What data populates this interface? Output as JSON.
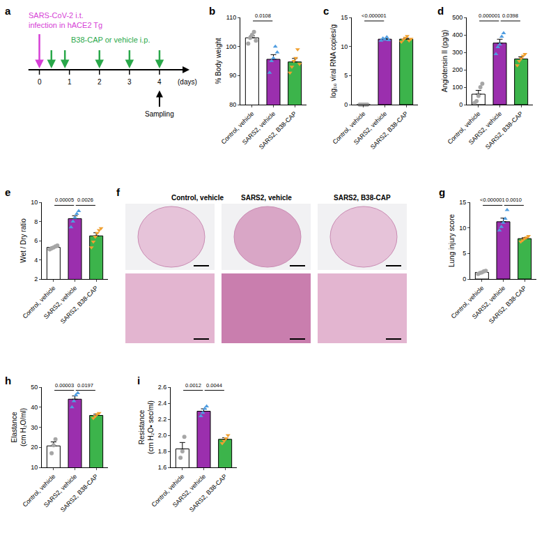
{
  "diagram": {
    "panel": "a",
    "type": "timeline",
    "day_ticks": [
      0,
      1,
      2,
      3,
      4
    ],
    "unit_label": "(days)",
    "infection": {
      "day": 0,
      "label": [
        "SARS-CoV-2 i.t.",
        "infection in hACE2 Tg"
      ],
      "color": "#d63fd6"
    },
    "treatment": {
      "days": [
        0.4,
        0.85,
        2,
        3,
        4
      ],
      "label": "B38-CAP or vehicle i.p.",
      "color": "#2aa84a"
    },
    "sampling": {
      "day": 4,
      "label": "Sampling"
    }
  },
  "images": {
    "panel": "f",
    "type": "image",
    "columns": [
      "Control, vehicle",
      "SARS2, vehicle",
      "SARS2, B38-CAP"
    ]
  },
  "chart_data": [
    {
      "panel": "b",
      "type": "bar",
      "categories": [
        "Control, vehicle",
        "SARS2, vehicle",
        "SARS2, B38-CAP"
      ],
      "y_label": [
        "% Body weight"
      ],
      "ylim": [
        80,
        110
      ],
      "yticks": [
        80,
        90,
        100,
        110
      ],
      "values": [
        103,
        95.6,
        94.7
      ],
      "errors": [
        0.7,
        1.6,
        1.2
      ],
      "colors": [
        "#ffffff",
        "#9b2fae",
        "#3cb44b"
      ],
      "points": [
        [
          101,
          103,
          104,
          105,
          102
        ],
        [
          91,
          95,
          96,
          100,
          98
        ],
        [
          91,
          93,
          95,
          96,
          99,
          94
        ]
      ],
      "point_colors": [
        "#a6a6a6",
        "#4f9de0",
        "#f0a030"
      ],
      "point_markers": [
        "circle",
        "triangle-up",
        "triangle-down"
      ],
      "comparisons": [
        {
          "from": 0,
          "to": 1,
          "label": "0.0108"
        }
      ]
    },
    {
      "panel": "c",
      "type": "bar",
      "categories": [
        "Control, vehicle",
        "SARS2, vehicle",
        "SARS2, B38-CAP"
      ],
      "y_label": [
        "log₁₀ viral RNA copies/g"
      ],
      "ylim": [
        0,
        15
      ],
      "yticks": [
        0,
        5,
        10,
        15
      ],
      "values": [
        0,
        11.26,
        11.27
      ],
      "errors": [
        0,
        0.11,
        0.15
      ],
      "colors": [
        "#ffffff",
        "#9b2fae",
        "#3cb44b"
      ],
      "points": [
        [
          0,
          0,
          0,
          0,
          0
        ],
        [
          11.0,
          11.4,
          11.2,
          11.6,
          11.1
        ],
        [
          10.8,
          11.2,
          11.5,
          11.8,
          11.0,
          11.3
        ]
      ],
      "point_colors": [
        "#a6a6a6",
        "#4f9de0",
        "#f0a030"
      ],
      "point_markers": [
        "circle",
        "triangle-up",
        "triangle-down"
      ],
      "comparisons": [
        {
          "from": 0,
          "to": 1,
          "label": "<0.000001"
        }
      ]
    },
    {
      "panel": "d",
      "type": "bar",
      "categories": [
        "Control, vehicle",
        "SARS2, vehicle",
        "SARS2, B38-CAP"
      ],
      "y_label": [
        "Angiotensin II (pg/g)"
      ],
      "ylim": [
        0,
        500
      ],
      "yticks": [
        0,
        100,
        200,
        300,
        400,
        500
      ],
      "values": [
        60,
        353,
        262
      ],
      "errors": [
        22,
        22,
        12
      ],
      "colors": [
        "#ffffff",
        "#9b2fae",
        "#3cb44b"
      ],
      "points": [
        [
          10,
          20,
          50,
          100,
          120
        ],
        [
          290,
          330,
          345,
          390,
          410
        ],
        [
          225,
          250,
          265,
          280,
          290
        ]
      ],
      "point_colors": [
        "#a6a6a6",
        "#4f9de0",
        "#f0a030"
      ],
      "point_markers": [
        "circle",
        "triangle-up",
        "triangle-down"
      ],
      "comparisons": [
        {
          "from": 0,
          "to": 1,
          "label": "0.000001"
        },
        {
          "from": 1,
          "to": 2,
          "label": "0.0398"
        }
      ]
    },
    {
      "panel": "e",
      "type": "bar",
      "categories": [
        "Control, vehicle",
        "SARS2, vehicle",
        "SARS2, B38-CAP"
      ],
      "y_label": [
        "Wet / Dry ratio"
      ],
      "ylim": [
        2,
        10
      ],
      "yticks": [
        2,
        4,
        6,
        8,
        10
      ],
      "values": [
        5.3,
        8.3,
        6.5
      ],
      "errors": [
        0.07,
        0.3,
        0.32
      ],
      "colors": [
        "#ffffff",
        "#9b2fae",
        "#3cb44b"
      ],
      "points": [
        [
          5.1,
          5.2,
          5.3,
          5.4,
          5.5
        ],
        [
          7.4,
          8.0,
          8.4,
          8.8,
          9.1
        ],
        [
          5.3,
          5.9,
          6.4,
          6.8,
          7.1,
          7.3
        ]
      ],
      "point_colors": [
        "#a6a6a6",
        "#4f9de0",
        "#f0a030"
      ],
      "point_markers": [
        "circle",
        "triangle-up",
        "triangle-down"
      ],
      "comparisons": [
        {
          "from": 0,
          "to": 1,
          "label": "0.00005"
        },
        {
          "from": 1,
          "to": 2,
          "label": "0.0026"
        }
      ]
    },
    {
      "panel": "g",
      "type": "bar",
      "categories": [
        "Control, vehicle",
        "SARS2, vehicle",
        "SARS2, B38-CAP"
      ],
      "y_label": [
        "Lung injury score"
      ],
      "ylim": [
        0,
        15
      ],
      "yticks": [
        0,
        5,
        10,
        15
      ],
      "values": [
        1.3,
        11.2,
        7.9
      ],
      "errors": [
        0.1,
        0.7,
        0.2
      ],
      "colors": [
        "#ffffff",
        "#9b2fae",
        "#3cb44b"
      ],
      "points": [
        [
          1.0,
          1.2,
          1.3,
          1.5,
          1.6
        ],
        [
          9.5,
          10.2,
          11.0,
          11.8,
          13.5
        ],
        [
          7.3,
          7.6,
          7.9,
          8.1,
          8.4
        ]
      ],
      "point_colors": [
        "#a6a6a6",
        "#4f9de0",
        "#f0a030"
      ],
      "point_markers": [
        "circle",
        "triangle-up",
        "triangle-down"
      ],
      "comparisons": [
        {
          "from": 0,
          "to": 1,
          "label": "<0.000001"
        },
        {
          "from": 1,
          "to": 2,
          "label": "0.0010"
        }
      ]
    },
    {
      "panel": "h",
      "type": "bar",
      "categories": [
        "Control, vehicle",
        "SARS2, vehicle",
        "SARS2, B38-CAP"
      ],
      "y_label": [
        "Elastance",
        "(cm H₂O/ml)"
      ],
      "ylim": [
        10,
        50
      ],
      "yticks": [
        10,
        20,
        30,
        40,
        50
      ],
      "values": [
        20.7,
        44,
        35.9
      ],
      "errors": [
        2.0,
        1.6,
        0.6
      ],
      "colors": [
        "#ffffff",
        "#9b2fae",
        "#3cb44b"
      ],
      "points": [
        [
          17,
          21,
          24
        ],
        [
          40,
          43,
          46,
          47
        ],
        [
          34.5,
          35.5,
          36.5,
          37
        ]
      ],
      "point_colors": [
        "#a6a6a6",
        "#4f9de0",
        "#f0a030"
      ],
      "point_markers": [
        "circle",
        "triangle-up",
        "triangle-down"
      ],
      "comparisons": [
        {
          "from": 0,
          "to": 1,
          "label": "0.00003"
        },
        {
          "from": 1,
          "to": 2,
          "label": "0.0197"
        }
      ]
    },
    {
      "panel": "i",
      "type": "bar",
      "categories": [
        "Control, vehicle",
        "SARS2, vehicle",
        "SARS2, B38-CAP"
      ],
      "y_label": [
        "Resistance",
        "(cm H₂O▪ sec/ml)"
      ],
      "ylim": [
        1.6,
        2.6
      ],
      "yticks": [
        1.6,
        1.8,
        {
          "value": 2,
          "label": "2.0"
        },
        2.2,
        2.4,
        2.6
      ],
      "values": [
        1.83,
        2.3,
        1.95
      ],
      "errors": [
        0.08,
        0.03,
        0.02
      ],
      "colors": [
        "#ffffff",
        "#9b2fae",
        "#3cb44b"
      ],
      "points": [
        [
          1.72,
          1.8,
          1.98
        ],
        [
          2.24,
          2.28,
          2.33,
          2.36
        ],
        [
          1.9,
          1.93,
          1.96,
          2.0
        ]
      ],
      "point_colors": [
        "#a6a6a6",
        "#4f9de0",
        "#f0a030"
      ],
      "point_markers": [
        "circle",
        "triangle-up",
        "triangle-down"
      ],
      "comparisons": [
        {
          "from": 0,
          "to": 1,
          "label": "0.0012"
        },
        {
          "from": 1,
          "to": 2,
          "label": "0.0044"
        }
      ]
    }
  ]
}
